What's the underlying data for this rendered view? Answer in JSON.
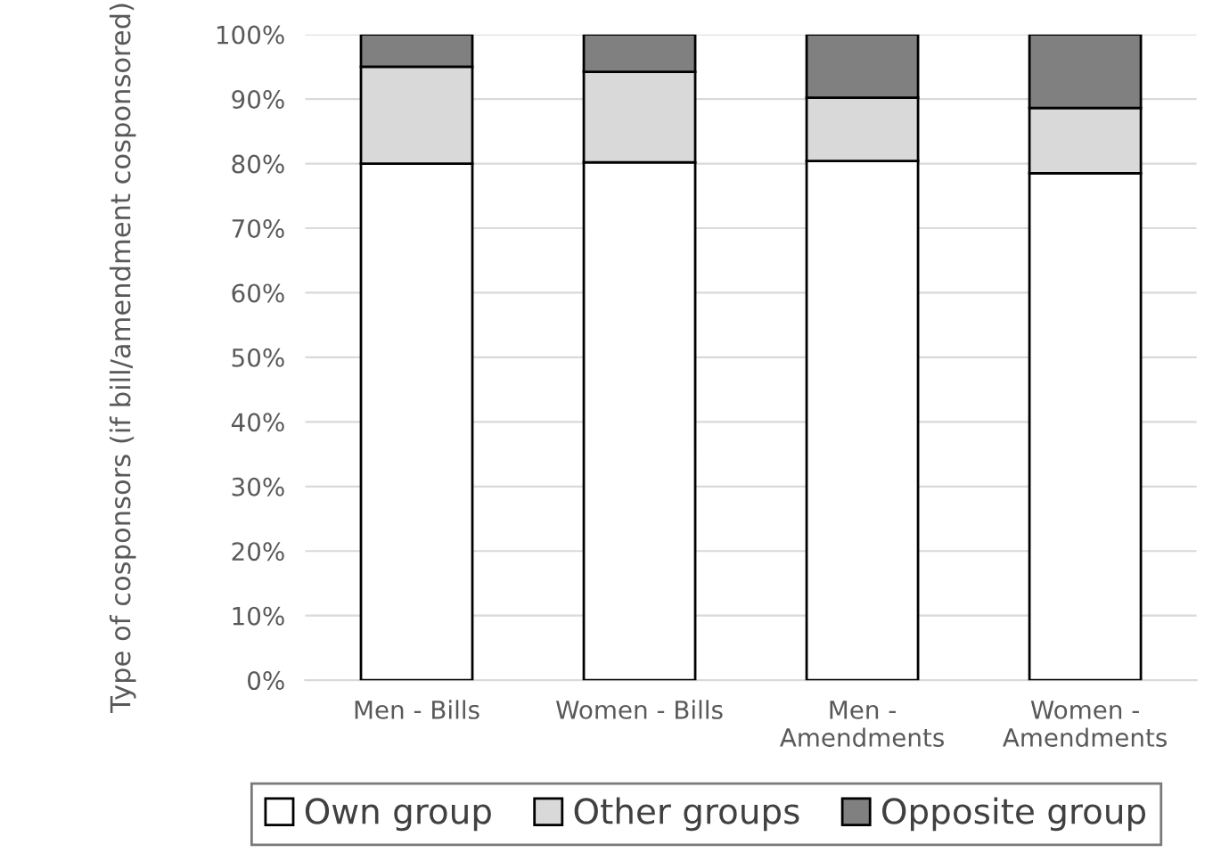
{
  "chart_data": {
    "type": "bar",
    "stacked": true,
    "ylabel": "Type of cosponsors (if bill/amendment cosponsored)",
    "categories": [
      "Men - Bills",
      "Women - Bills",
      "Men -\nAmendments",
      "Women -\nAmendments"
    ],
    "series": [
      {
        "name": "Own group",
        "color": "#ffffff",
        "values": [
          80.0,
          80.2,
          80.4,
          78.5
        ]
      },
      {
        "name": "Other groups",
        "color": "#d9d9d9",
        "values": [
          15.0,
          14.0,
          9.8,
          10.1
        ]
      },
      {
        "name": "Opposite group",
        "color": "#808080",
        "values": [
          5.0,
          5.8,
          9.8,
          11.4
        ]
      }
    ],
    "ylim": [
      0,
      100
    ],
    "yticks": [
      {
        "value": 0,
        "label": "0%"
      },
      {
        "value": 10,
        "label": "10%"
      },
      {
        "value": 20,
        "label": "20%"
      },
      {
        "value": 30,
        "label": "30%"
      },
      {
        "value": 40,
        "label": "40%"
      },
      {
        "value": 50,
        "label": "50%"
      },
      {
        "value": 60,
        "label": "60%"
      },
      {
        "value": 70,
        "label": "70%"
      },
      {
        "value": 80,
        "label": "80%"
      },
      {
        "value": 90,
        "label": "90%"
      },
      {
        "value": 100,
        "label": "100%"
      }
    ],
    "grid": "y",
    "legend": "bottom"
  }
}
